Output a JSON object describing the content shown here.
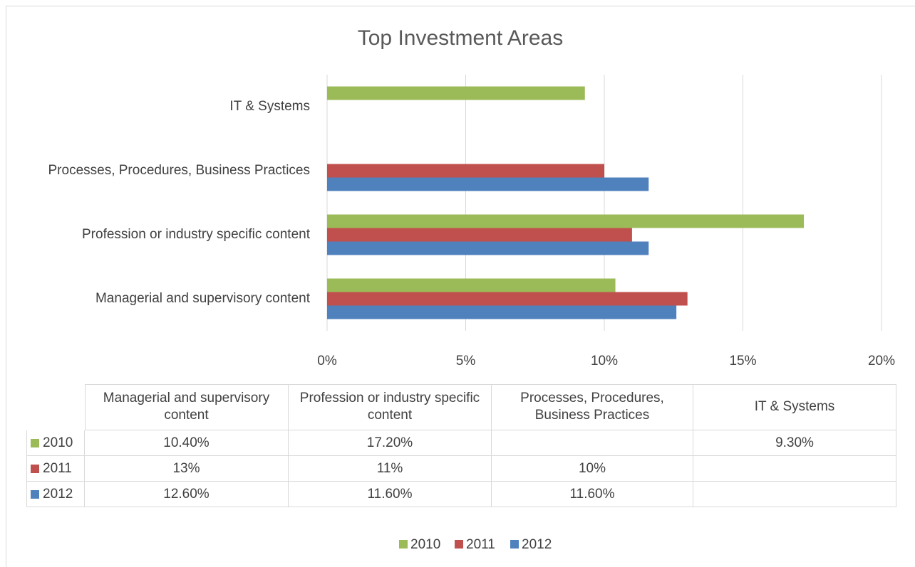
{
  "chart_data": {
    "type": "bar",
    "orientation": "horizontal",
    "title": "Top Investment Areas",
    "categories": [
      "Managerial and supervisory content",
      "Profession or industry specific content",
      "Processes, Procedures, Business Practices",
      "IT & Systems"
    ],
    "series": [
      {
        "name": "2010",
        "color": "#9bbb59",
        "values": [
          10.4,
          17.2,
          null,
          9.3
        ],
        "value_labels": [
          "10.40%",
          "17.20%",
          null,
          "9.30%"
        ]
      },
      {
        "name": "2011",
        "color": "#c0504d",
        "values": [
          13,
          11,
          10,
          null
        ],
        "value_labels": [
          "13%",
          "11%",
          "10%",
          null
        ]
      },
      {
        "name": "2012",
        "color": "#4f81bd",
        "values": [
          12.6,
          11.6,
          11.6,
          null
        ],
        "value_labels": [
          "12.60%",
          "11.60%",
          "11.60%",
          null
        ]
      }
    ],
    "xlim": [
      0,
      20
    ],
    "xticks": [
      {
        "value": 0,
        "label": "0%"
      },
      {
        "value": 5,
        "label": "5%"
      },
      {
        "value": 10,
        "label": "10%"
      },
      {
        "value": 15,
        "label": "15%"
      },
      {
        "value": 20,
        "label": "20%"
      }
    ],
    "grid": true,
    "data_table": true,
    "legend": "bottom"
  }
}
